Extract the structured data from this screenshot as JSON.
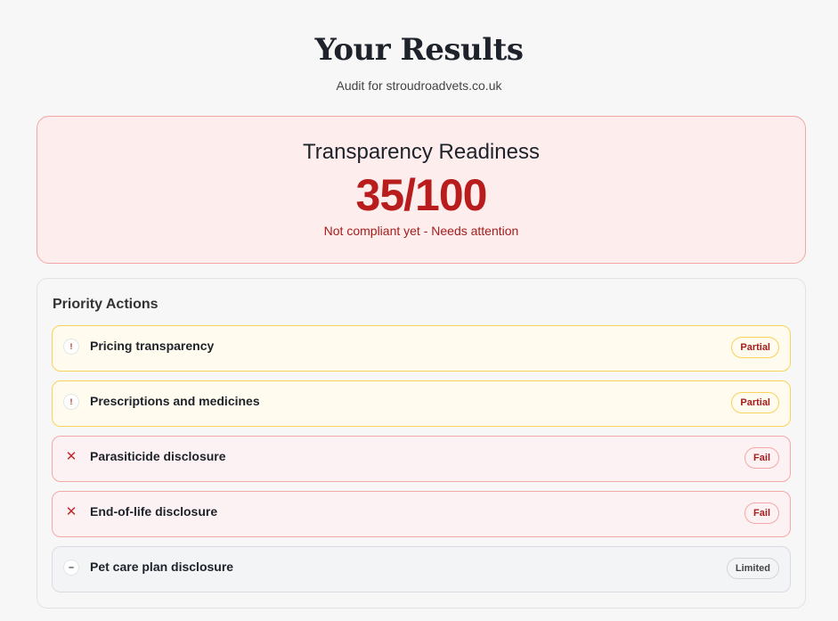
{
  "header": {
    "title": "Your Results",
    "subtitle": "Audit for stroudroadvets.co.uk"
  },
  "score": {
    "heading": "Transparency Readiness",
    "value": "35/100",
    "status": "Not compliant yet - Needs attention",
    "accent": "#b91c1c"
  },
  "priority": {
    "heading": "Priority Actions",
    "items": [
      {
        "label": "Pricing transparency",
        "status": "Partial",
        "icon": "exclamation-icon",
        "glyph": "!"
      },
      {
        "label": "Prescriptions and medicines",
        "status": "Partial",
        "icon": "exclamation-icon",
        "glyph": "!"
      },
      {
        "label": "Parasiticide disclosure",
        "status": "Fail",
        "icon": "x-icon",
        "glyph": "✕"
      },
      {
        "label": "End-of-life disclosure",
        "status": "Fail",
        "icon": "x-icon",
        "glyph": "✕"
      },
      {
        "label": "Pet care plan disclosure",
        "status": "Limited",
        "icon": "minus-icon",
        "glyph": "–"
      }
    ]
  }
}
